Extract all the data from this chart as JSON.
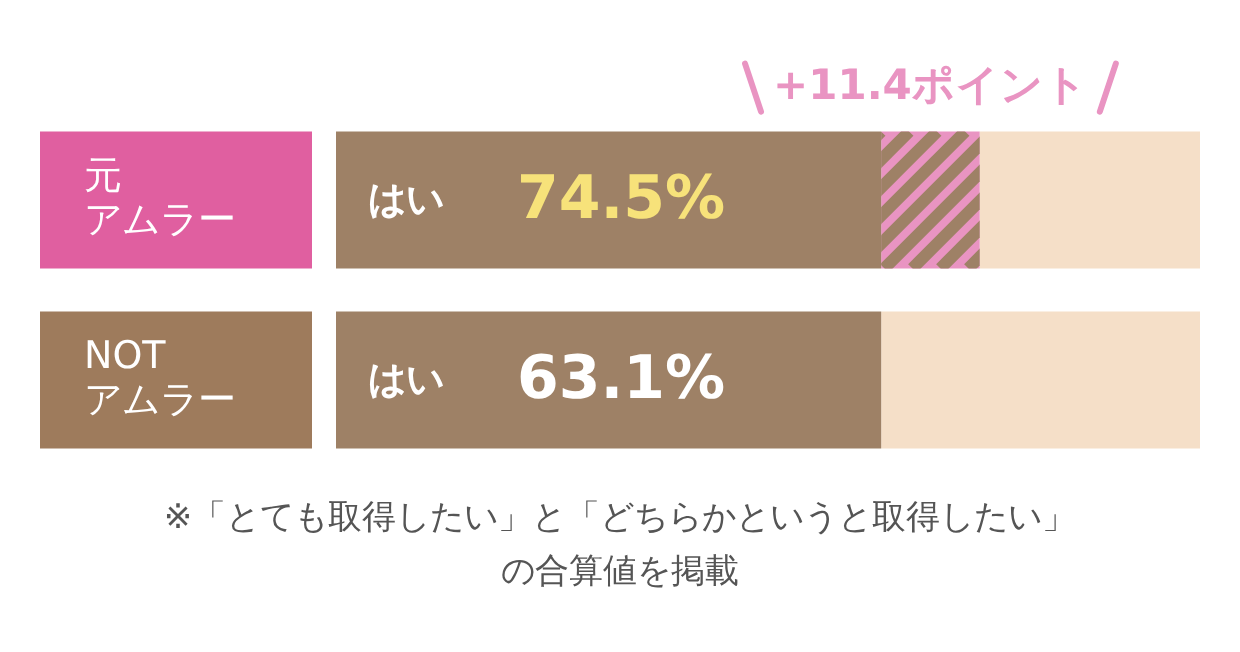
{
  "chart_data": {
    "type": "bar",
    "orientation": "horizontal",
    "stacked": true,
    "categories": [
      "元アムラー",
      "NOTアムラー"
    ],
    "series": [
      {
        "name": "はい",
        "color": "#9e8166",
        "values": [
          63.1,
          63.1
        ]
      },
      {
        "color": "#e994c2",
        "values": [
          11.4,
          null
        ],
        "value_labels": [
          "+11.4ポイント",
          null
        ]
      },
      {
        "color": "#f5dfc8",
        "values": [
          25.5,
          36.9
        ]
      }
    ],
    "xlim": [
      0,
      100
    ],
    "tick_labels": "y",
    "legend": false,
    "annotations": [
      {
        "text": "74.5%",
        "x": 33,
        "y": "元アムラー"
      },
      {
        "text": "63.1%",
        "x": 33,
        "y": "NOTアムラー"
      },
      "※「とても取得したい」と「どちらかというと取得したい」の合算値を掲載"
    ]
  }
}
